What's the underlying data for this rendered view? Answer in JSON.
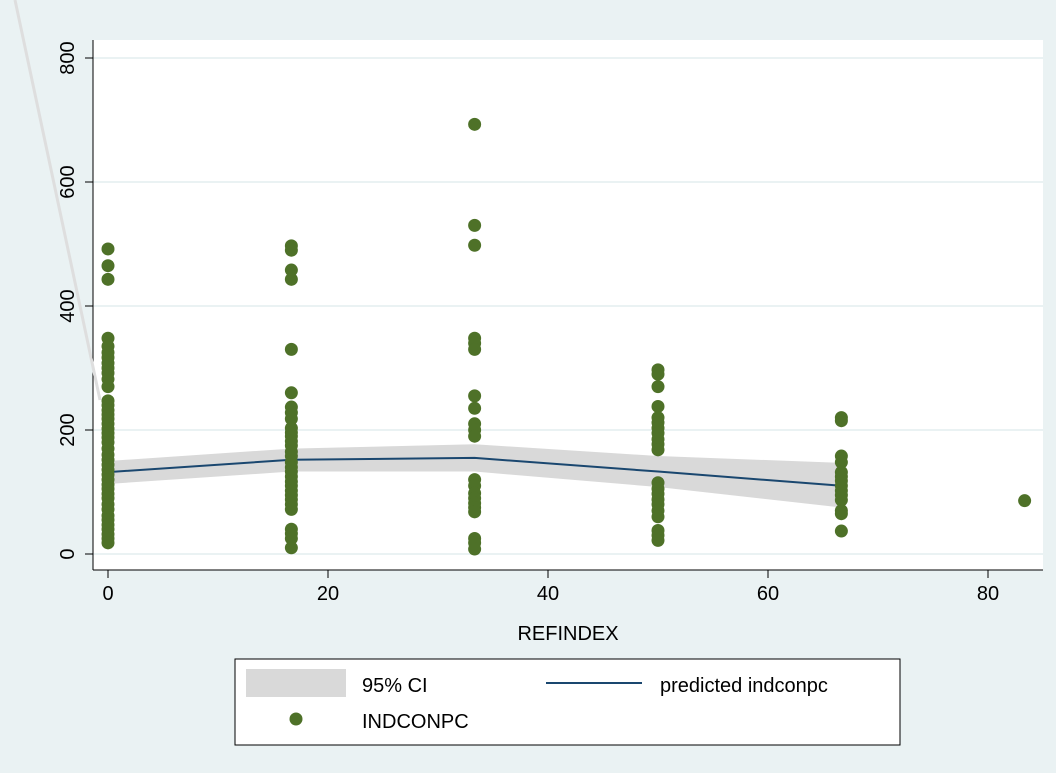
{
  "chart_data": {
    "type": "scatter",
    "title": "",
    "xlabel": "REFINDEX",
    "ylabel": "",
    "xlim": [
      -2,
      86
    ],
    "ylim": [
      -20,
      820
    ],
    "xticks": [
      0,
      20,
      40,
      60,
      80
    ],
    "yticks": [
      0,
      200,
      400,
      600,
      800
    ],
    "grid": "horizontal",
    "legend_position": "bottom",
    "colors": {
      "background": "#eaf2f3",
      "plot": "#ffffff",
      "grid": "#eaf2f3",
      "points": "#4e7128",
      "line": "#1a476f",
      "ci": "#d9d9d9"
    },
    "legend": [
      {
        "label": "95% CI",
        "symbol": "area"
      },
      {
        "label": "predicted indconpc",
        "symbol": "line"
      },
      {
        "label": "INDCONPC",
        "symbol": "marker"
      }
    ],
    "series": [
      {
        "name": "INDCONPC",
        "type": "scatter",
        "points": [
          [
            0,
            492
          ],
          [
            0,
            465
          ],
          [
            0,
            443
          ],
          [
            0,
            348
          ],
          [
            0,
            335
          ],
          [
            0,
            325
          ],
          [
            0,
            317
          ],
          [
            0,
            308
          ],
          [
            0,
            300
          ],
          [
            0,
            292
          ],
          [
            0,
            282
          ],
          [
            0,
            270
          ],
          [
            0,
            247
          ],
          [
            0,
            240
          ],
          [
            0,
            232
          ],
          [
            0,
            225
          ],
          [
            0,
            218
          ],
          [
            0,
            210
          ],
          [
            0,
            202
          ],
          [
            0,
            195
          ],
          [
            0,
            188
          ],
          [
            0,
            180
          ],
          [
            0,
            170
          ],
          [
            0,
            160
          ],
          [
            0,
            152
          ],
          [
            0,
            144
          ],
          [
            0,
            136
          ],
          [
            0,
            128
          ],
          [
            0,
            120
          ],
          [
            0,
            112
          ],
          [
            0,
            105
          ],
          [
            0,
            97
          ],
          [
            0,
            90
          ],
          [
            0,
            80
          ],
          [
            0,
            72
          ],
          [
            0,
            62
          ],
          [
            0,
            55
          ],
          [
            0,
            47
          ],
          [
            0,
            40
          ],
          [
            0,
            32
          ],
          [
            0,
            25
          ],
          [
            0,
            18
          ],
          [
            16.67,
            497
          ],
          [
            16.67,
            490
          ],
          [
            16.67,
            458
          ],
          [
            16.67,
            443
          ],
          [
            16.67,
            330
          ],
          [
            16.67,
            260
          ],
          [
            16.67,
            237
          ],
          [
            16.67,
            228
          ],
          [
            16.67,
            218
          ],
          [
            16.67,
            203
          ],
          [
            16.67,
            196
          ],
          [
            16.67,
            190
          ],
          [
            16.67,
            182
          ],
          [
            16.67,
            175
          ],
          [
            16.67,
            165
          ],
          [
            16.67,
            158
          ],
          [
            16.67,
            148
          ],
          [
            16.67,
            140
          ],
          [
            16.67,
            133
          ],
          [
            16.67,
            125
          ],
          [
            16.67,
            117
          ],
          [
            16.67,
            110
          ],
          [
            16.67,
            102
          ],
          [
            16.67,
            95
          ],
          [
            16.67,
            88
          ],
          [
            16.67,
            80
          ],
          [
            16.67,
            72
          ],
          [
            16.67,
            40
          ],
          [
            16.67,
            33
          ],
          [
            16.67,
            25
          ],
          [
            16.67,
            10
          ],
          [
            33.33,
            693
          ],
          [
            33.33,
            530
          ],
          [
            33.33,
            498
          ],
          [
            33.33,
            348
          ],
          [
            33.33,
            340
          ],
          [
            33.33,
            330
          ],
          [
            33.33,
            255
          ],
          [
            33.33,
            235
          ],
          [
            33.33,
            210
          ],
          [
            33.33,
            200
          ],
          [
            33.33,
            190
          ],
          [
            33.33,
            120
          ],
          [
            33.33,
            110
          ],
          [
            33.33,
            98
          ],
          [
            33.33,
            90
          ],
          [
            33.33,
            82
          ],
          [
            33.33,
            75
          ],
          [
            33.33,
            68
          ],
          [
            33.33,
            25
          ],
          [
            33.33,
            18
          ],
          [
            33.33,
            8
          ],
          [
            50,
            297
          ],
          [
            50,
            290
          ],
          [
            50,
            270
          ],
          [
            50,
            238
          ],
          [
            50,
            220
          ],
          [
            50,
            212
          ],
          [
            50,
            203
          ],
          [
            50,
            195
          ],
          [
            50,
            185
          ],
          [
            50,
            177
          ],
          [
            50,
            168
          ],
          [
            50,
            115
          ],
          [
            50,
            105
          ],
          [
            50,
            97
          ],
          [
            50,
            88
          ],
          [
            50,
            80
          ],
          [
            50,
            70
          ],
          [
            50,
            60
          ],
          [
            50,
            38
          ],
          [
            50,
            30
          ],
          [
            50,
            22
          ],
          [
            66.67,
            220
          ],
          [
            66.67,
            215
          ],
          [
            66.67,
            158
          ],
          [
            66.67,
            148
          ],
          [
            66.67,
            132
          ],
          [
            66.67,
            125
          ],
          [
            66.67,
            118
          ],
          [
            66.67,
            110
          ],
          [
            66.67,
            102
          ],
          [
            66.67,
            95
          ],
          [
            66.67,
            87
          ],
          [
            66.67,
            70
          ],
          [
            66.67,
            65
          ],
          [
            66.67,
            37
          ],
          [
            83.33,
            86
          ]
        ]
      },
      {
        "name": "predicted indconpc",
        "type": "line",
        "x": [
          0,
          16.67,
          33.33,
          50,
          66.67
        ],
        "y": [
          132,
          152,
          155,
          133,
          110
        ]
      },
      {
        "name": "95% CI",
        "type": "area",
        "x": [
          0,
          16.67,
          33.33,
          50,
          66.67
        ],
        "lower": [
          113,
          133,
          133,
          108,
          75
        ],
        "upper": [
          150,
          170,
          177,
          158,
          147
        ]
      }
    ]
  }
}
